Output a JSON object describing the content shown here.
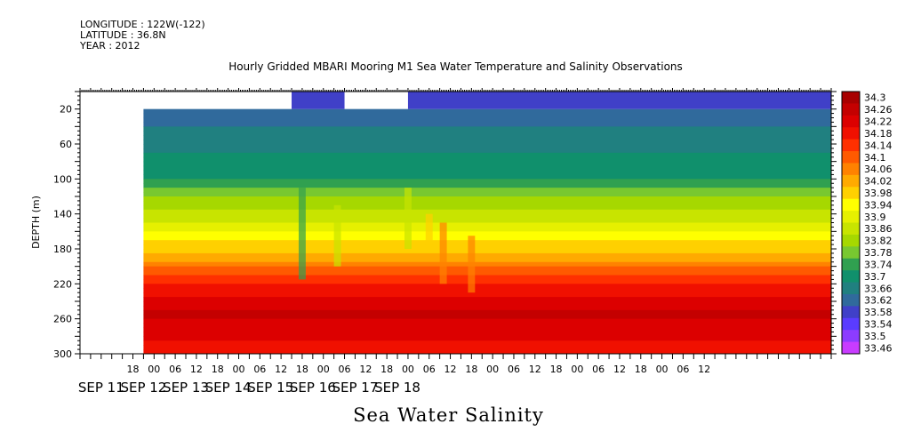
{
  "header": {
    "longitude": "LONGITUDE : 122W(-122)",
    "latitude": "LATITUDE : 36.8N",
    "year": "YEAR : 2012",
    "title": "Hourly Gridded MBARI Mooring M1 Sea Water Temperature and Salinity Observations"
  },
  "chart_data": {
    "type": "heatmap",
    "title": "Hourly Gridded MBARI Mooring M1 Sea Water Temperature and Salinity Observations",
    "xlabel": "Sea Water Salinity",
    "ylabel": "DEPTH (m)",
    "x_hour_range": [
      -36,
      390
    ],
    "y_range": [
      0,
      300
    ],
    "y_inverted": true,
    "y_ticks": [
      20,
      60,
      100,
      140,
      180,
      220,
      260,
      300
    ],
    "x_hour_ticks": [
      "18",
      "00",
      "06",
      "12",
      "18",
      "00",
      "06",
      "12",
      "18",
      "00",
      "06",
      "12",
      "18",
      "00",
      "06",
      "12",
      "18",
      "00",
      "06",
      "12",
      "18",
      "00",
      "06",
      "12",
      "18",
      "00",
      "06",
      "12"
    ],
    "x_date_labels": [
      "SEP 11",
      "SEP 12",
      "SEP 13",
      "SEP 14",
      "SEP 15",
      "SEP 16",
      "SEP 17",
      "SEP 18"
    ],
    "colorbar": {
      "levels": [
        "34.3",
        "34.26",
        "34.22",
        "34.18",
        "34.14",
        "34.1",
        "34.06",
        "34.02",
        "33.98",
        "33.94",
        "33.9",
        "33.86",
        "33.82",
        "33.78",
        "33.74",
        "33.7",
        "33.66",
        "33.62",
        "33.58",
        "33.54",
        "33.5",
        "33.46"
      ],
      "colors": [
        "#a80000",
        "#c40000",
        "#dc0000",
        "#f01000",
        "#ff3000",
        "#ff5a00",
        "#ff8200",
        "#ffaa00",
        "#ffd000",
        "#ffff00",
        "#e6f000",
        "#c8e400",
        "#a6d800",
        "#78c830",
        "#30a050",
        "#10906c",
        "#208080",
        "#306a9c",
        "#4040c8",
        "#5a3cff",
        "#8c3cff",
        "#c83cff"
      ]
    },
    "profile": [
      {
        "depth": 20,
        "value": 33.62
      },
      {
        "depth": 40,
        "value": 33.64
      },
      {
        "depth": 70,
        "value": 33.68
      },
      {
        "depth": 100,
        "value": 33.72
      },
      {
        "depth": 120,
        "value": 33.8
      },
      {
        "depth": 150,
        "value": 33.88
      },
      {
        "depth": 170,
        "value": 33.96
      },
      {
        "depth": 185,
        "value": 34.0
      },
      {
        "depth": 200,
        "value": 34.08
      },
      {
        "depth": 220,
        "value": 34.16
      },
      {
        "depth": 240,
        "value": 34.22
      },
      {
        "depth": 255,
        "value": 34.26
      },
      {
        "depth": 270,
        "value": 34.22
      },
      {
        "depth": 300,
        "value": 34.18
      }
    ]
  }
}
